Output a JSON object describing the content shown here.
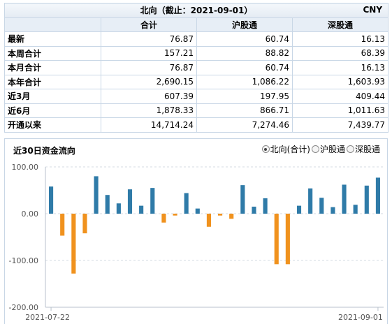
{
  "table": {
    "title": "北向（截止：2021-09-01）",
    "currency": "CNY",
    "headers": [
      "",
      "合计",
      "沪股通",
      "深股通"
    ],
    "rows": [
      {
        "label": "最新",
        "values": [
          "76.87",
          "60.74",
          "16.13"
        ]
      },
      {
        "label": "本周合计",
        "values": [
          "157.21",
          "88.82",
          "68.39"
        ]
      },
      {
        "label": "本月合计",
        "values": [
          "76.87",
          "60.74",
          "16.13"
        ]
      },
      {
        "label": "本年合计",
        "values": [
          "2,690.15",
          "1,086.22",
          "1,603.93"
        ]
      },
      {
        "label": "近3月",
        "values": [
          "607.39",
          "197.95",
          "409.44"
        ]
      },
      {
        "label": "近6月",
        "values": [
          "1,878.33",
          "866.71",
          "1,011.63"
        ]
      },
      {
        "label": "开通以来",
        "values": [
          "14,714.24",
          "7,274.46",
          "7,439.77"
        ]
      }
    ]
  },
  "chart_header": {
    "title": "近30日资金流向",
    "options": [
      {
        "label": "北向(合计)",
        "selected": true
      },
      {
        "label": "沪股通",
        "selected": false
      },
      {
        "label": "深股通",
        "selected": false
      }
    ]
  },
  "chart_data": {
    "type": "bar",
    "ylim": [
      -200,
      100
    ],
    "yticks": [
      100,
      0,
      -100,
      -200
    ],
    "ytick_labels": [
      "100.00",
      "0.00",
      "-100.00",
      "-200.00"
    ],
    "x_start_label": "2021-07-22",
    "x_end_label": "2021-09-01",
    "colors": {
      "positive": "#2f7ba8",
      "negative": "#f0921e"
    },
    "values": [
      58,
      -47,
      -128,
      -42,
      80,
      40,
      22,
      52,
      17,
      55,
      -19,
      -4,
      44,
      11,
      -28,
      -4,
      -11,
      61,
      15,
      33,
      -108,
      -108,
      17,
      54,
      34,
      14,
      62,
      19,
      60,
      77
    ]
  }
}
